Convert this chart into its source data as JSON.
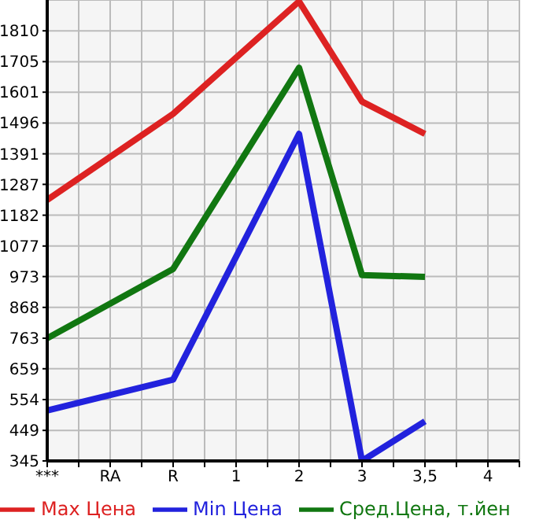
{
  "chart_data": {
    "type": "line",
    "categories": [
      "***",
      "RA",
      "R",
      "1",
      "2",
      "3",
      "3,5",
      "4"
    ],
    "series": [
      {
        "name": "Max Цена",
        "color": "#dd2222",
        "values": [
          1234,
          null,
          1527,
          null,
          1910,
          1569,
          1459,
          null
        ]
      },
      {
        "name": "Min Цена",
        "color": "#2222dd",
        "values": [
          517,
          null,
          622,
          null,
          1459,
          345,
          480,
          null
        ]
      },
      {
        "name": "Сред.Цена, т.йен",
        "color": "#117711",
        "values": [
          763,
          null,
          999,
          null,
          1684,
          978,
          972,
          null
        ]
      }
    ],
    "ylim": [
      345,
      1915
    ],
    "yticks": [
      345,
      449,
      554,
      659,
      763,
      868,
      973,
      1077,
      1182,
      1287,
      1391,
      1496,
      1601,
      1705,
      1810
    ],
    "grid": true,
    "legend": "bottom",
    "marker": "none",
    "line_style": "solid"
  }
}
